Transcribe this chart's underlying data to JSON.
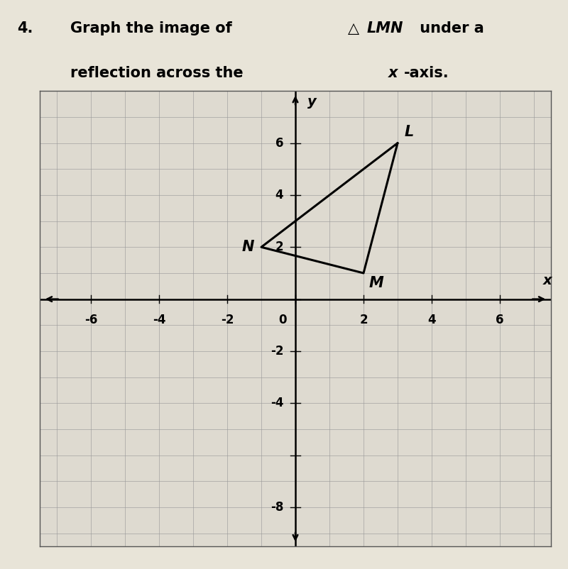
{
  "title_number": "4.",
  "L": [
    3,
    6
  ],
  "M": [
    2,
    1
  ],
  "N": [
    -1,
    2
  ],
  "xlim": [
    -7.5,
    7.5
  ],
  "ylim": [
    -9.5,
    8.0
  ],
  "xticks": [
    -6,
    -4,
    -2,
    0,
    2,
    4,
    6
  ],
  "yticks": [
    -8,
    -4,
    -2,
    2,
    4,
    6
  ],
  "xlabel": "x",
  "ylabel": "y",
  "grid_color": "#999999",
  "triangle_color": "#000000",
  "page_bg": "#e8e4d8",
  "graph_bg": "#dedad0",
  "label_fontsize": 14,
  "tick_fontsize": 12,
  "title_fontsize": 15,
  "axis_linewidth": 1.8,
  "triangle_linewidth": 2.2,
  "grid_linewidth": 0.6
}
